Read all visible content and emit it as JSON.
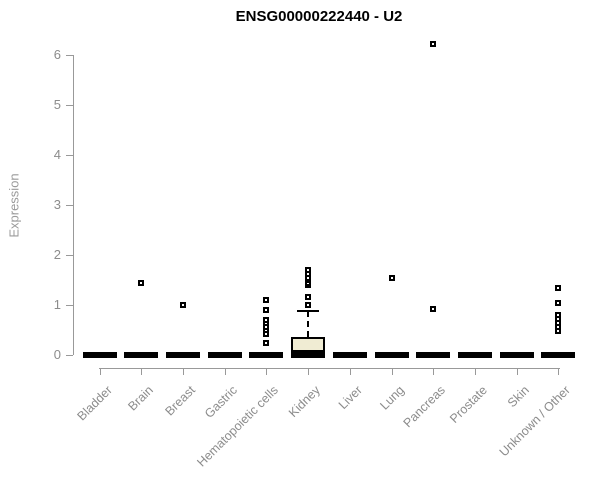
{
  "chart_data": {
    "type": "boxplot",
    "title": "ENSG00000222440 - U2",
    "ylabel": "Expression",
    "xlabel": "",
    "ylim": [
      0,
      6
    ],
    "yticks": [
      0,
      1,
      2,
      3,
      4,
      5,
      6
    ],
    "grid": false,
    "legend": null,
    "categories": [
      "Bladder",
      "Brain",
      "Breast",
      "Gastric",
      "Hematopoietic cells",
      "Kidney",
      "Liver",
      "Lung",
      "Pancreas",
      "Prostate",
      "Skin",
      "Unknown / Other"
    ],
    "boxes": [
      {
        "category": "Bladder",
        "q1": 0,
        "median": 0,
        "q3": 0,
        "whisker_low": 0,
        "whisker_high": 0,
        "outliers": []
      },
      {
        "category": "Brain",
        "q1": 0,
        "median": 0,
        "q3": 0,
        "whisker_low": 0,
        "whisker_high": 0,
        "outliers": [
          1.45
        ]
      },
      {
        "category": "Breast",
        "q1": 0,
        "median": 0,
        "q3": 0,
        "whisker_low": 0,
        "whisker_high": 0,
        "outliers": [
          1.0
        ]
      },
      {
        "category": "Gastric",
        "q1": 0,
        "median": 0,
        "q3": 0,
        "whisker_low": 0,
        "whisker_high": 0,
        "outliers": []
      },
      {
        "category": "Hematopoietic cells",
        "q1": 0,
        "median": 0,
        "q3": 0,
        "whisker_low": 0,
        "whisker_high": 0,
        "outliers": [
          1.1,
          0.9,
          0.7,
          0.63,
          0.56,
          0.49,
          0.42,
          0.24
        ]
      },
      {
        "category": "Kidney",
        "q1": 0,
        "median": 0,
        "q3": 0.37,
        "whisker_low": 0,
        "whisker_high": 0.88,
        "outliers": [
          1.0,
          1.16,
          1.4,
          1.45,
          1.5,
          1.55,
          1.62,
          1.7
        ]
      },
      {
        "category": "Liver",
        "q1": 0,
        "median": 0,
        "q3": 0,
        "whisker_low": 0,
        "whisker_high": 0,
        "outliers": []
      },
      {
        "category": "Lung",
        "q1": 0,
        "median": 0,
        "q3": 0,
        "whisker_low": 0,
        "whisker_high": 0,
        "outliers": [
          1.54
        ]
      },
      {
        "category": "Pancreas",
        "q1": 0,
        "median": 0,
        "q3": 0,
        "whisker_low": 0,
        "whisker_high": 0,
        "outliers": [
          0.92,
          6.22
        ]
      },
      {
        "category": "Prostate",
        "q1": 0,
        "median": 0,
        "q3": 0,
        "whisker_low": 0,
        "whisker_high": 0,
        "outliers": []
      },
      {
        "category": "Skin",
        "q1": 0,
        "median": 0,
        "q3": 0,
        "whisker_low": 0,
        "whisker_high": 0,
        "outliers": []
      },
      {
        "category": "Unknown / Other",
        "q1": 0,
        "median": 0,
        "q3": 0,
        "whisker_low": 0,
        "whisker_high": 0,
        "outliers": [
          1.34,
          1.04,
          0.8,
          0.72,
          0.64,
          0.56,
          0.48
        ]
      }
    ],
    "colors": {
      "background": "#ffffff",
      "box_fill_kidney": "#f0ecd3",
      "box_line": "#000000",
      "collapsed_box": "#000000",
      "axis": "#999999",
      "tick_label": "#8c8c8c",
      "title": "#000000"
    }
  }
}
